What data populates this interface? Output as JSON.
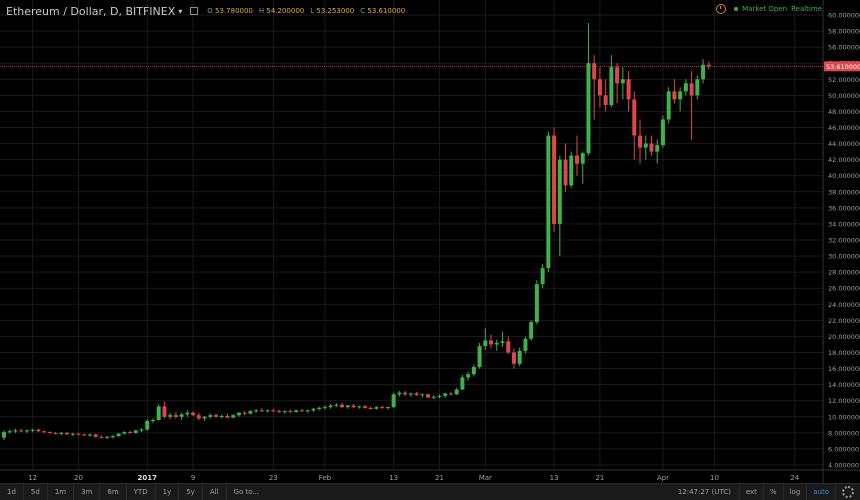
{
  "header": {
    "symbol": "Ethereum / Dollar, D, BITFINEX",
    "caret": "▾",
    "ohlc": [
      {
        "key": "O",
        "value": "53.780000"
      },
      {
        "key": "H",
        "value": "54.200000"
      },
      {
        "key": "L",
        "value": "53.253000"
      },
      {
        "key": "C",
        "value": "53.610000"
      }
    ]
  },
  "market_status": "Market Open",
  "realtime_label": "Realtime",
  "colors": {
    "up": "#3fb24a",
    "down": "#e0474c",
    "last_price": "#e0474c",
    "accent": "#2d9cdb"
  },
  "toolbar": {
    "ranges": [
      "1d",
      "5d",
      "1m",
      "3m",
      "6m",
      "YTD",
      "1y",
      "5y",
      "All"
    ],
    "goto": "Go to...",
    "time": "12:47:27 (UTC)",
    "right": [
      "ext",
      "%",
      "log",
      "auto"
    ]
  },
  "chart_data": {
    "type": "candlestick",
    "title": "Ethereum / Dollar, D, BITFINEX",
    "ylim": [
      4,
      60
    ],
    "y_ticks": [
      "60.000000",
      "58.000000",
      "56.000000",
      "54.000000",
      "52.000000",
      "50.000000",
      "48.000000",
      "46.000000",
      "44.000000",
      "42.000000",
      "40.000000",
      "38.000000",
      "36.000000",
      "34.000000",
      "32.000000",
      "30.000000",
      "28.000000",
      "26.000000",
      "24.000000",
      "22.000000",
      "20.000000",
      "18.000000",
      "16.000000",
      "14.000000",
      "12.000000",
      "10.000000",
      "8.000000",
      "6.000000",
      "4.000000"
    ],
    "x_ticks": [
      {
        "label": "12",
        "i": 5
      },
      {
        "label": "20",
        "i": 13
      },
      {
        "label": "2017",
        "i": 25,
        "bold": true
      },
      {
        "label": "9",
        "i": 33
      },
      {
        "label": "23",
        "i": 47
      },
      {
        "label": "Feb",
        "i": 56
      },
      {
        "label": "13",
        "i": 68
      },
      {
        "label": "21",
        "i": 76
      },
      {
        "label": "Mar",
        "i": 84
      },
      {
        "label": "13",
        "i": 96
      },
      {
        "label": "21",
        "i": 104
      },
      {
        "label": "Apr",
        "i": 115
      },
      {
        "label": "10",
        "i": 124
      },
      {
        "label": "24",
        "i": 138
      }
    ],
    "last_price": "53.610000",
    "last_value": 53.61,
    "candles": [
      [
        7.4,
        8.3,
        7.1,
        8.1
      ],
      [
        8.1,
        8.4,
        7.9,
        8.2
      ],
      [
        8.2,
        8.5,
        8.0,
        8.3
      ],
      [
        8.3,
        8.5,
        8.1,
        8.2
      ],
      [
        8.2,
        8.4,
        8.0,
        8.3
      ],
      [
        8.3,
        8.5,
        8.1,
        8.4
      ],
      [
        8.4,
        8.5,
        8.1,
        8.2
      ],
      [
        8.2,
        8.3,
        8.0,
        8.1
      ],
      [
        8.1,
        8.2,
        7.9,
        8.0
      ],
      [
        8.0,
        8.1,
        7.8,
        7.9
      ],
      [
        7.9,
        8.1,
        7.7,
        8.0
      ],
      [
        8.0,
        8.1,
        7.8,
        7.8
      ],
      [
        7.8,
        8.0,
        7.6,
        7.9
      ],
      [
        7.9,
        8.0,
        7.7,
        7.8
      ],
      [
        7.8,
        7.9,
        7.6,
        7.7
      ],
      [
        7.7,
        7.9,
        7.5,
        7.8
      ],
      [
        7.8,
        7.9,
        7.4,
        7.5
      ],
      [
        7.5,
        7.7,
        7.3,
        7.4
      ],
      [
        7.4,
        7.6,
        7.2,
        7.5
      ],
      [
        7.5,
        7.7,
        7.3,
        7.6
      ],
      [
        7.6,
        8.0,
        7.5,
        7.9
      ],
      [
        7.9,
        8.2,
        7.8,
        8.1
      ],
      [
        8.1,
        8.3,
        7.9,
        8.0
      ],
      [
        8.0,
        8.4,
        7.9,
        8.3
      ],
      [
        8.3,
        8.6,
        8.1,
        8.4
      ],
      [
        8.4,
        9.7,
        8.3,
        9.5
      ],
      [
        9.5,
        9.8,
        9.2,
        9.6
      ],
      [
        9.6,
        11.6,
        9.5,
        11.3
      ],
      [
        11.3,
        11.9,
        9.8,
        10.0
      ],
      [
        10.0,
        10.5,
        9.7,
        10.2
      ],
      [
        10.2,
        10.6,
        9.8,
        10.0
      ],
      [
        10.0,
        10.5,
        9.6,
        10.3
      ],
      [
        10.3,
        10.8,
        10.0,
        10.5
      ],
      [
        10.5,
        10.7,
        10.1,
        10.2
      ],
      [
        10.2,
        10.5,
        9.6,
        9.8
      ],
      [
        9.8,
        10.1,
        9.5,
        10.0
      ],
      [
        10.0,
        10.4,
        9.8,
        10.2
      ],
      [
        10.2,
        10.4,
        9.9,
        10.0
      ],
      [
        10.0,
        10.3,
        9.8,
        10.1
      ],
      [
        10.1,
        10.4,
        9.8,
        9.9
      ],
      [
        9.9,
        10.3,
        9.8,
        10.2
      ],
      [
        10.2,
        10.6,
        10.0,
        10.5
      ],
      [
        10.5,
        10.7,
        10.2,
        10.4
      ],
      [
        10.4,
        10.8,
        10.3,
        10.7
      ],
      [
        10.7,
        11.0,
        10.5,
        10.8
      ],
      [
        10.8,
        11.1,
        10.6,
        10.7
      ],
      [
        10.7,
        10.9,
        10.5,
        10.8
      ],
      [
        10.8,
        11.0,
        10.6,
        10.7
      ],
      [
        10.7,
        10.9,
        10.5,
        10.6
      ],
      [
        10.6,
        10.8,
        10.4,
        10.7
      ],
      [
        10.7,
        10.9,
        10.5,
        10.6
      ],
      [
        10.6,
        10.9,
        10.5,
        10.8
      ],
      [
        10.8,
        11.0,
        10.6,
        10.7
      ],
      [
        10.7,
        10.9,
        10.5,
        10.8
      ],
      [
        10.8,
        11.1,
        10.6,
        11.0
      ],
      [
        11.0,
        11.3,
        10.8,
        11.1
      ],
      [
        11.1,
        11.4,
        10.9,
        11.2
      ],
      [
        11.2,
        11.6,
        11.0,
        11.4
      ],
      [
        11.4,
        11.7,
        11.2,
        11.5
      ],
      [
        11.5,
        11.7,
        11.1,
        11.2
      ],
      [
        11.2,
        11.5,
        11.0,
        11.4
      ],
      [
        11.4,
        11.6,
        11.1,
        11.2
      ],
      [
        11.2,
        11.4,
        11.0,
        11.3
      ],
      [
        11.3,
        11.5,
        11.0,
        11.1
      ],
      [
        11.1,
        11.3,
        10.9,
        11.0
      ],
      [
        11.0,
        11.3,
        10.9,
        11.2
      ],
      [
        11.2,
        11.4,
        11.0,
        11.1
      ],
      [
        11.1,
        11.3,
        10.9,
        11.2
      ],
      [
        11.2,
        13.0,
        11.1,
        12.8
      ],
      [
        12.8,
        13.2,
        12.5,
        13.0
      ],
      [
        13.0,
        13.2,
        12.6,
        12.8
      ],
      [
        12.8,
        13.0,
        12.5,
        12.9
      ],
      [
        12.9,
        13.1,
        12.6,
        12.7
      ],
      [
        12.7,
        12.9,
        12.4,
        12.8
      ],
      [
        12.8,
        12.9,
        12.3,
        12.4
      ],
      [
        12.4,
        12.7,
        12.2,
        12.5
      ],
      [
        12.5,
        12.8,
        12.3,
        12.6
      ],
      [
        12.6,
        13.0,
        12.4,
        12.9
      ],
      [
        12.9,
        13.1,
        12.6,
        12.8
      ],
      [
        12.8,
        13.6,
        12.7,
        13.4
      ],
      [
        13.4,
        15.2,
        13.3,
        14.9
      ],
      [
        14.9,
        15.6,
        14.5,
        15.3
      ],
      [
        15.3,
        16.5,
        15.0,
        16.2
      ],
      [
        16.2,
        19.2,
        16.0,
        18.8
      ],
      [
        18.8,
        21.0,
        18.3,
        19.5
      ],
      [
        19.5,
        20.2,
        18.5,
        19.0
      ],
      [
        19.0,
        19.6,
        18.2,
        19.2
      ],
      [
        19.2,
        20.6,
        18.7,
        19.4
      ],
      [
        19.4,
        20.0,
        17.8,
        18.0
      ],
      [
        18.0,
        18.5,
        16.0,
        16.6
      ],
      [
        16.6,
        18.6,
        16.3,
        18.2
      ],
      [
        18.2,
        20.0,
        17.9,
        19.7
      ],
      [
        19.7,
        22.0,
        19.5,
        21.8
      ],
      [
        21.8,
        27.0,
        21.5,
        26.5
      ],
      [
        26.5,
        29.0,
        26.0,
        28.5
      ],
      [
        28.5,
        45.5,
        28.0,
        45.0
      ],
      [
        45.0,
        46.0,
        33.0,
        34.0
      ],
      [
        34.0,
        42.5,
        30.0,
        42.0
      ],
      [
        42.0,
        44.0,
        38.0,
        38.8
      ],
      [
        38.8,
        43.0,
        38.5,
        42.5
      ],
      [
        42.5,
        45.0,
        40.0,
        41.5
      ],
      [
        41.5,
        43.0,
        39.0,
        42.8
      ],
      [
        42.8,
        59.0,
        42.5,
        54.0
      ],
      [
        54.0,
        55.0,
        47.0,
        52.0
      ],
      [
        52.0,
        53.5,
        48.5,
        50.0
      ],
      [
        50.0,
        52.0,
        48.0,
        48.8
      ],
      [
        48.8,
        55.0,
        48.5,
        53.5
      ],
      [
        53.5,
        54.0,
        49.0,
        51.5
      ],
      [
        51.5,
        53.5,
        49.5,
        52.0
      ],
      [
        52.0,
        53.0,
        48.0,
        49.5
      ],
      [
        49.5,
        50.5,
        42.0,
        45.0
      ],
      [
        45.0,
        47.0,
        41.5,
        43.5
      ],
      [
        43.5,
        45.0,
        42.0,
        44.0
      ],
      [
        44.0,
        45.0,
        42.5,
        43.0
      ],
      [
        43.0,
        44.5,
        41.5,
        43.8
      ],
      [
        43.8,
        47.5,
        43.5,
        47.0
      ],
      [
        47.0,
        51.0,
        46.5,
        50.5
      ],
      [
        50.5,
        52.0,
        49.0,
        49.5
      ],
      [
        49.5,
        51.0,
        48.0,
        50.5
      ],
      [
        50.5,
        52.0,
        50.0,
        51.5
      ],
      [
        51.5,
        53.0,
        44.5,
        50.0
      ],
      [
        50.0,
        52.5,
        49.5,
        52.0
      ],
      [
        52.0,
        54.5,
        51.5,
        53.8
      ],
      [
        53.8,
        54.2,
        53.2,
        53.6
      ]
    ]
  }
}
